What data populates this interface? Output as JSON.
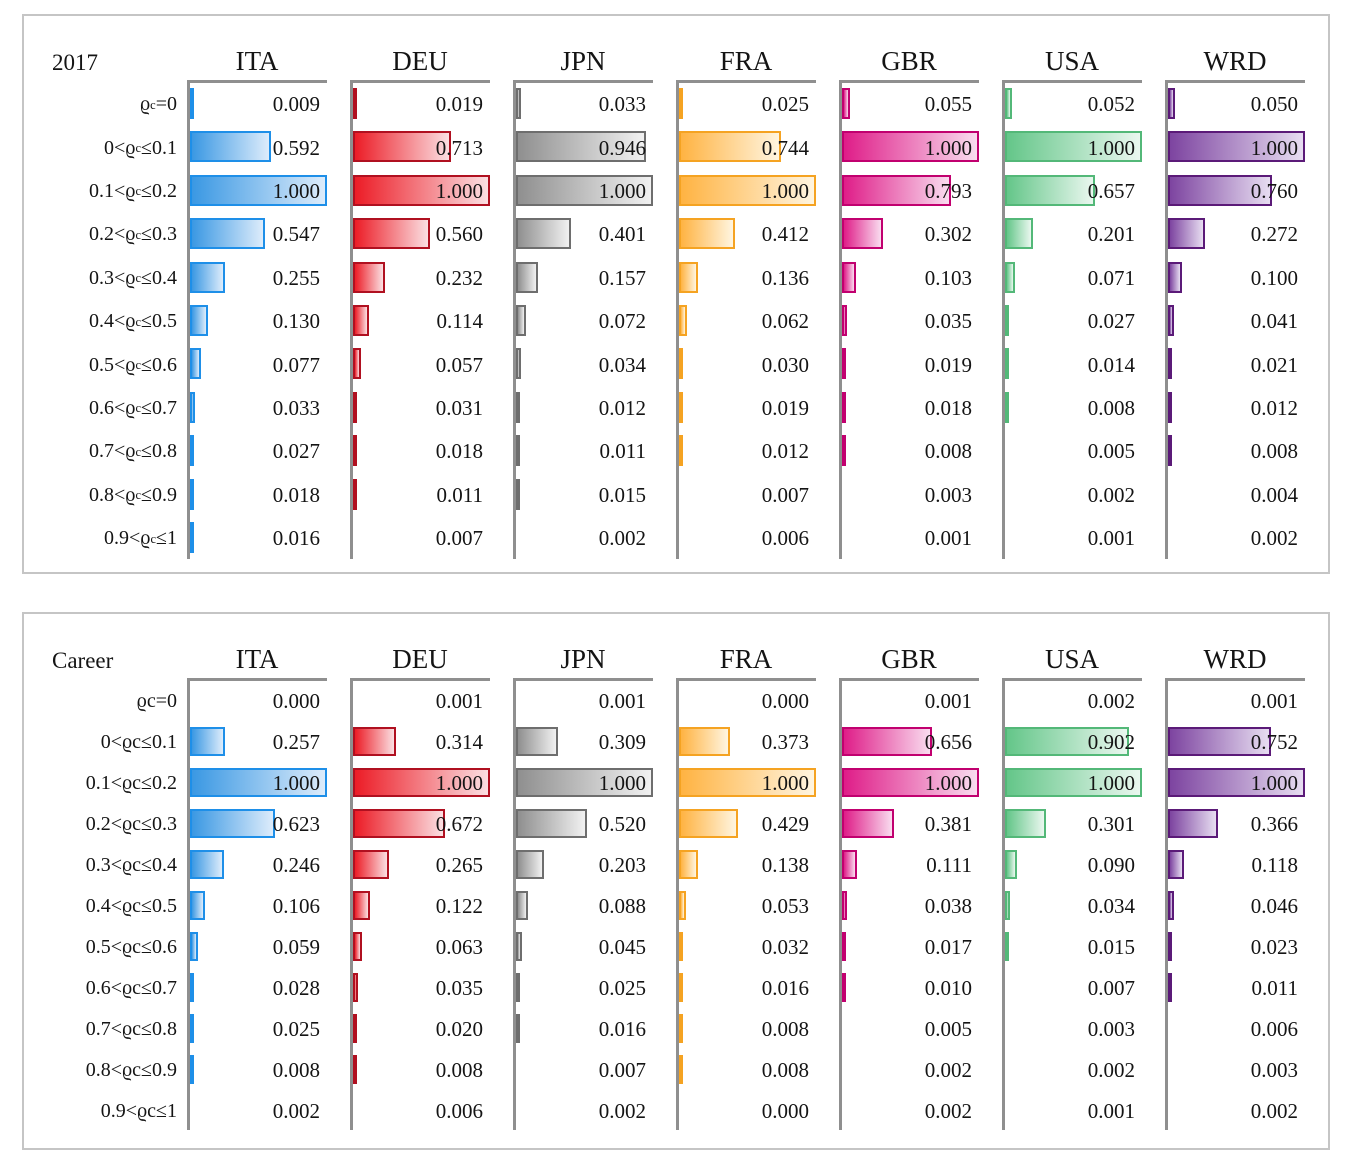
{
  "colors": {
    "ITA": {
      "border": "#1e8fe8",
      "start": "#3a98e3",
      "end": "#ddecfb"
    },
    "DEU": {
      "border": "#b01020",
      "start": "#ec1c26",
      "end": "#fbdfe2"
    },
    "JPN": {
      "border": "#6e6e6e",
      "start": "#8f8f8f",
      "end": "#f1f1f1"
    },
    "FRA": {
      "border": "#f5a322",
      "start": "#ffb342",
      "end": "#fff5e0"
    },
    "GBR": {
      "border": "#c1006f",
      "start": "#df1d88",
      "end": "#f9dcef"
    },
    "USA": {
      "border": "#53b878",
      "start": "#64c689",
      "end": "#eaf7ef"
    },
    "WRD": {
      "border": "#5b1a78",
      "start": "#7d44a0",
      "end": "#e7ddf1"
    }
  },
  "axis_color": "#8f8f8f",
  "panel_border_color": "#c5c5c5",
  "value_format": "3-decimals",
  "chart_data": [
    {
      "type": "bar",
      "orientation": "horizontal",
      "title": "2017",
      "xlim": [
        0,
        1
      ],
      "grid": false,
      "legend": "none",
      "categories": [
        "ϱc=0",
        "0<ϱc≤0.1",
        "0.1<ϱc≤0.2",
        "0.2<ϱc≤0.3",
        "0.3<ϱc≤0.4",
        "0.4<ϱc≤0.5",
        "0.5<ϱc≤0.6",
        "0.6<ϱc≤0.7",
        "0.7<ϱc≤0.8",
        "0.8<ϱc≤0.9",
        "0.9<ϱc≤1"
      ],
      "categories_rich": [
        {
          "pre": "ϱ",
          "sub": "c",
          "post": "=0"
        },
        {
          "pre": "0<ϱ",
          "sub": "c",
          "post": "≤0.1"
        },
        {
          "pre": "0.1<ϱ",
          "sub": "c",
          "post": "≤0.2"
        },
        {
          "pre": "0.2<ϱ",
          "sub": "c",
          "post": "≤0.3"
        },
        {
          "pre": "0.3<ϱ",
          "sub": "c",
          "post": "≤0.4"
        },
        {
          "pre": "0.4<ϱ",
          "sub": "c",
          "post": "≤0.5"
        },
        {
          "pre": "0.5<ϱ",
          "sub": "c",
          "post": "≤0.6"
        },
        {
          "pre": "0.6<ϱ",
          "sub": "c",
          "post": "≤0.7"
        },
        {
          "pre": "0.7<ϱ",
          "sub": "c",
          "post": "≤0.8"
        },
        {
          "pre": "0.8<ϱ",
          "sub": "c",
          "post": "≤0.9"
        },
        {
          "pre": "0.9<ϱ",
          "sub": "c",
          "post": "≤1"
        }
      ],
      "series": [
        {
          "name": "ITA",
          "values": [
            0.009,
            0.592,
            1.0,
            0.547,
            0.255,
            0.13,
            0.077,
            0.033,
            0.027,
            0.018,
            0.016
          ]
        },
        {
          "name": "DEU",
          "values": [
            0.019,
            0.713,
            1.0,
            0.56,
            0.232,
            0.114,
            0.057,
            0.031,
            0.018,
            0.011,
            0.007
          ]
        },
        {
          "name": "JPN",
          "values": [
            0.033,
            0.946,
            1.0,
            0.401,
            0.157,
            0.072,
            0.034,
            0.012,
            0.011,
            0.015,
            0.002
          ]
        },
        {
          "name": "FRA",
          "values": [
            0.025,
            0.744,
            1.0,
            0.412,
            0.136,
            0.062,
            0.03,
            0.019,
            0.012,
            0.007,
            0.006
          ]
        },
        {
          "name": "GBR",
          "values": [
            0.055,
            1.0,
            0.793,
            0.302,
            0.103,
            0.035,
            0.019,
            0.018,
            0.008,
            0.003,
            0.001
          ]
        },
        {
          "name": "USA",
          "values": [
            0.052,
            1.0,
            0.657,
            0.201,
            0.071,
            0.027,
            0.014,
            0.008,
            0.005,
            0.002,
            0.001
          ]
        },
        {
          "name": "WRD",
          "values": [
            0.05,
            1.0,
            0.76,
            0.272,
            0.1,
            0.041,
            0.021,
            0.012,
            0.008,
            0.004,
            0.002
          ]
        }
      ]
    },
    {
      "type": "bar",
      "orientation": "horizontal",
      "title": "Career",
      "xlim": [
        0,
        1
      ],
      "grid": false,
      "legend": "none",
      "categories": [
        "ϱc=0",
        "0<ϱc≤0.1",
        "0.1<ϱc≤0.2",
        "0.2<ϱc≤0.3",
        "0.3<ϱc≤0.4",
        "0.4<ϱc≤0.5",
        "0.5<ϱc≤0.6",
        "0.6<ϱc≤0.7",
        "0.7<ϱc≤0.8",
        "0.8<ϱc≤0.9",
        "0.9<ϱc≤1"
      ],
      "categories_rich": [
        {
          "pre": "ϱc=0",
          "sub": "",
          "post": ""
        },
        {
          "pre": "0<ϱc≤0.1",
          "sub": "",
          "post": ""
        },
        {
          "pre": "0.1<ϱc≤0.2",
          "sub": "",
          "post": ""
        },
        {
          "pre": "0.2<ϱc≤0.3",
          "sub": "",
          "post": ""
        },
        {
          "pre": "0.3<ϱc≤0.4",
          "sub": "",
          "post": ""
        },
        {
          "pre": "0.4<ϱc≤0.5",
          "sub": "",
          "post": ""
        },
        {
          "pre": "0.5<ϱc≤0.6",
          "sub": "",
          "post": ""
        },
        {
          "pre": "0.6<ϱc≤0.7",
          "sub": "",
          "post": ""
        },
        {
          "pre": "0.7<ϱc≤0.8",
          "sub": "",
          "post": ""
        },
        {
          "pre": "0.8<ϱc≤0.9",
          "sub": "",
          "post": ""
        },
        {
          "pre": "0.9<ϱc≤1",
          "sub": "",
          "post": ""
        }
      ],
      "series": [
        {
          "name": "ITA",
          "values": [
            0.0,
            0.257,
            1.0,
            0.623,
            0.246,
            0.106,
            0.059,
            0.028,
            0.025,
            0.008,
            0.002
          ]
        },
        {
          "name": "DEU",
          "values": [
            0.001,
            0.314,
            1.0,
            0.672,
            0.265,
            0.122,
            0.063,
            0.035,
            0.02,
            0.008,
            0.006
          ]
        },
        {
          "name": "JPN",
          "values": [
            0.001,
            0.309,
            1.0,
            0.52,
            0.203,
            0.088,
            0.045,
            0.025,
            0.016,
            0.007,
            0.002
          ]
        },
        {
          "name": "FRA",
          "values": [
            0.0,
            0.373,
            1.0,
            0.429,
            0.138,
            0.053,
            0.032,
            0.016,
            0.008,
            0.008,
            0.0
          ]
        },
        {
          "name": "GBR",
          "values": [
            0.001,
            0.656,
            1.0,
            0.381,
            0.111,
            0.038,
            0.017,
            0.01,
            0.005,
            0.002,
            0.002
          ]
        },
        {
          "name": "USA",
          "values": [
            0.002,
            0.902,
            1.0,
            0.301,
            0.09,
            0.034,
            0.015,
            0.007,
            0.003,
            0.002,
            0.001
          ]
        },
        {
          "name": "WRD",
          "values": [
            0.001,
            0.752,
            1.0,
            0.366,
            0.118,
            0.046,
            0.023,
            0.011,
            0.006,
            0.003,
            0.002
          ]
        }
      ]
    }
  ]
}
